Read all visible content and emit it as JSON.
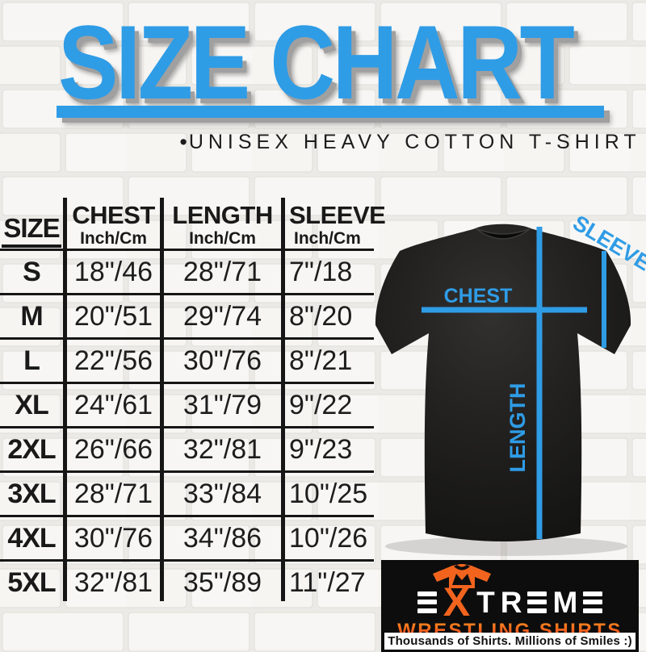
{
  "title": "SIZE CHART",
  "subtitle_bullet": "•",
  "subtitle": "UNISEX HEAVY COTTON T-SHIRT",
  "table": {
    "size_header": "SIZE",
    "col_chest": "CHEST",
    "col_length": "LENGTH",
    "col_sleeve": "SLEEVE",
    "unit": "Inch/Cm"
  },
  "chart_data": {
    "type": "table",
    "title": "SIZE CHART — UNISEX HEAVY COTTON T-SHIRT",
    "columns": [
      "SIZE",
      "CHEST Inch/Cm",
      "LENGTH Inch/Cm",
      "SLEEVE Inch/Cm"
    ],
    "rows": [
      [
        "S",
        "18\"/46",
        "28\"/71",
        "7\"/18"
      ],
      [
        "M",
        "20\"/51",
        "29\"/74",
        "8\"/20"
      ],
      [
        "L",
        "22\"/56",
        "30\"/76",
        "8\"/21"
      ],
      [
        "XL",
        "24\"/61",
        "31\"/79",
        "9\"/22"
      ],
      [
        "2XL",
        "26\"/66",
        "32\"/81",
        "9\"/23"
      ],
      [
        "3XL",
        "28\"/71",
        "33\"/84",
        "10\"/25"
      ],
      [
        "4XL",
        "30\"/76",
        "34\"/86",
        "10\"/26"
      ],
      [
        "5XL",
        "32\"/81",
        "35\"/89",
        "11\"/27"
      ]
    ]
  },
  "diagram": {
    "chest_label": "CHEST",
    "length_label": "LENGTH",
    "sleeve_label": "SLEEVE"
  },
  "logo": {
    "brand": "EXTREME",
    "line2": "WRESTLING SHIRTS",
    "tagline": "Thousands of Shirts. Millions of Smiles :)"
  },
  "colors": {
    "accent_blue": "#2f9ce6",
    "logo_orange": "#f2641e",
    "logo_red": "#d62020",
    "line_black": "#161616"
  }
}
